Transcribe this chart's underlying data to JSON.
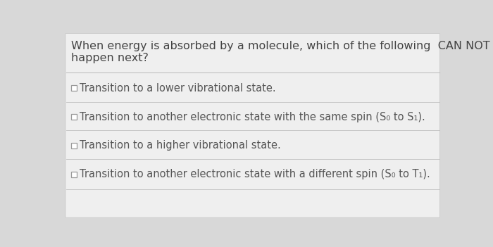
{
  "background_color": "#d8d8d8",
  "question_text_line1": "When energy is absorbed by a molecule, which of the following  CAN NOT",
  "question_text_line2": "happen next?",
  "question_fontsize": 11.5,
  "question_color": "#444444",
  "options": [
    "Transition to a lower vibrational state.",
    "Transition to another electronic state with the same spin (S₀ to S₁).",
    "Transition to a higher vibrational state.",
    "Transition to another electronic state with a different spin (S₀ to T₁)."
  ],
  "option_fontsize": 10.5,
  "option_color": "#555555",
  "checkbox_color": "#999999",
  "separator_color": "#c0c0c0",
  "card_bg": "#efefef",
  "card_edge": "#cccccc"
}
